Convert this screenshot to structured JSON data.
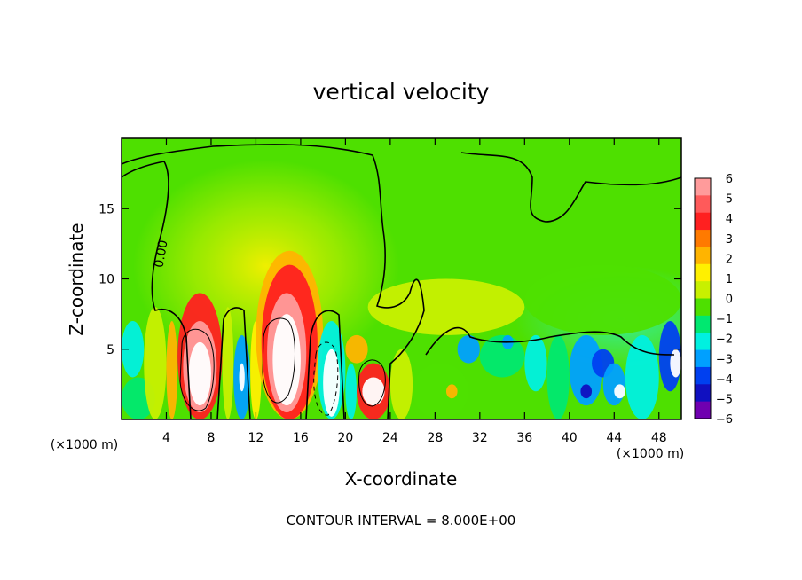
{
  "chart_data": {
    "type": "heatmap",
    "title": "vertical velocity",
    "xlabel": "X-coordinate",
    "ylabel": "Z-coordinate",
    "x_unit_label": "(×1000 m)",
    "y_unit_label": "(×1000 m)",
    "xlim": [
      0,
      50
    ],
    "ylim": [
      0,
      20
    ],
    "x_ticks": [
      4,
      8,
      12,
      16,
      20,
      24,
      28,
      32,
      36,
      40,
      44,
      48
    ],
    "y_ticks": [
      5,
      10,
      15
    ],
    "contour_label": "0.00",
    "footer": "CONTOUR INTERVAL = 8.000E+00",
    "colorbar": {
      "ticks": [
        6,
        5,
        4,
        3,
        2,
        1,
        0,
        -1,
        -2,
        -3,
        -4,
        -5,
        -6
      ],
      "tick_labels": [
        "6",
        "5",
        "4",
        "3",
        "2",
        "1",
        "0",
        "−1",
        "−2",
        "−3",
        "−4",
        "−5",
        "−6"
      ],
      "colors": [
        "#ff9b9b",
        "#ff5a5a",
        "#ff2020",
        "#ff7a00",
        "#ffb400",
        "#fff000",
        "#c8f000",
        "#4ee000",
        "#00e870",
        "#00f0e0",
        "#00a0ff",
        "#0040f0",
        "#1010c0",
        "#7000b0"
      ]
    },
    "cells": [
      {
        "x0": 0,
        "x1": 3,
        "z0": 0,
        "z1": 3,
        "w": -2
      },
      {
        "x0": 0,
        "x1": 2,
        "z0": 3,
        "z1": 7,
        "w": -3
      },
      {
        "x0": 2,
        "x1": 4,
        "z0": 0,
        "z1": 8,
        "w": 0
      },
      {
        "x0": 4,
        "x1": 5,
        "z0": 0,
        "z1": 7,
        "w": 2
      },
      {
        "x0": 5,
        "x1": 9,
        "z0": 0,
        "z1": 9,
        "w": 4
      },
      {
        "x0": 5.5,
        "x1": 8.5,
        "z0": 0.5,
        "z1": 7,
        "w": 6
      },
      {
        "x0": 6,
        "x1": 8,
        "z0": 1,
        "z1": 5.5,
        "w": 7
      },
      {
        "x0": 9,
        "x1": 10,
        "z0": 0,
        "z1": 8,
        "w": 0
      },
      {
        "x0": 10,
        "x1": 11.5,
        "z0": 0,
        "z1": 6,
        "w": -4
      },
      {
        "x0": 10.5,
        "x1": 11,
        "z0": 2,
        "z1": 4,
        "w": -7
      },
      {
        "x0": 11.5,
        "x1": 12.5,
        "z0": 0,
        "z1": 7,
        "w": 1
      },
      {
        "x0": 12,
        "x1": 18,
        "z0": 0,
        "z1": 12,
        "w": 2
      },
      {
        "x0": 12.5,
        "x1": 17.5,
        "z0": 0,
        "z1": 11,
        "w": 4
      },
      {
        "x0": 13,
        "x1": 16.5,
        "z0": 0.5,
        "z1": 9,
        "w": 6
      },
      {
        "x0": 13.5,
        "x1": 16,
        "z0": 1,
        "z1": 7.5,
        "w": 7
      },
      {
        "x0": 17.5,
        "x1": 20,
        "z0": 0,
        "z1": 7,
        "w": -3
      },
      {
        "x0": 18,
        "x1": 19.5,
        "z0": 0.2,
        "z1": 5,
        "w": -7
      },
      {
        "x0": 20,
        "x1": 21,
        "z0": 0,
        "z1": 4,
        "w": -3
      },
      {
        "x0": 20,
        "x1": 22,
        "z0": 4,
        "z1": 6,
        "w": 2
      },
      {
        "x0": 21,
        "x1": 24,
        "z0": 0,
        "z1": 4,
        "w": 4
      },
      {
        "x0": 21.5,
        "x1": 23.5,
        "z0": 1,
        "z1": 3,
        "w": 7
      },
      {
        "x0": 24,
        "x1": 26,
        "z0": 0,
        "z1": 5,
        "w": 0
      },
      {
        "x0": 26,
        "x1": 31,
        "z0": 0,
        "z1": 4,
        "w": -1
      },
      {
        "x0": 29,
        "x1": 30,
        "z0": 1.5,
        "z1": 2.5,
        "w": 2
      },
      {
        "x0": 30,
        "x1": 32,
        "z0": 4,
        "z1": 6,
        "w": -4
      },
      {
        "x0": 32,
        "x1": 36,
        "z0": 3,
        "z1": 6,
        "w": -2
      },
      {
        "x0": 34,
        "x1": 35,
        "z0": 5,
        "z1": 6,
        "w": -4
      },
      {
        "x0": 36,
        "x1": 38,
        "z0": 2,
        "z1": 6,
        "w": -3
      },
      {
        "x0": 38,
        "x1": 40,
        "z0": 0,
        "z1": 6,
        "w": -2
      },
      {
        "x0": 40,
        "x1": 43,
        "z0": 1,
        "z1": 6,
        "w": -4
      },
      {
        "x0": 41,
        "x1": 42,
        "z0": 1.5,
        "z1": 2.5,
        "w": -6
      },
      {
        "x0": 42,
        "x1": 44,
        "z0": 3,
        "z1": 5,
        "w": -5
      },
      {
        "x0": 43,
        "x1": 45,
        "z0": 1,
        "z1": 4,
        "w": -4
      },
      {
        "x0": 44,
        "x1": 45,
        "z0": 1.5,
        "z1": 2.5,
        "w": -7
      },
      {
        "x0": 45,
        "x1": 48,
        "z0": 0,
        "z1": 6,
        "w": -3
      },
      {
        "x0": 48,
        "x1": 50,
        "z0": 2,
        "z1": 7,
        "w": -5
      },
      {
        "x0": 49,
        "x1": 50,
        "z0": 3,
        "z1": 5,
        "w": -7
      },
      {
        "x0": 36,
        "x1": 50,
        "z0": 6,
        "z1": 11,
        "w": -1
      },
      {
        "x0": 22,
        "x1": 36,
        "z0": 6,
        "z1": 10,
        "w": 0
      }
    ]
  }
}
